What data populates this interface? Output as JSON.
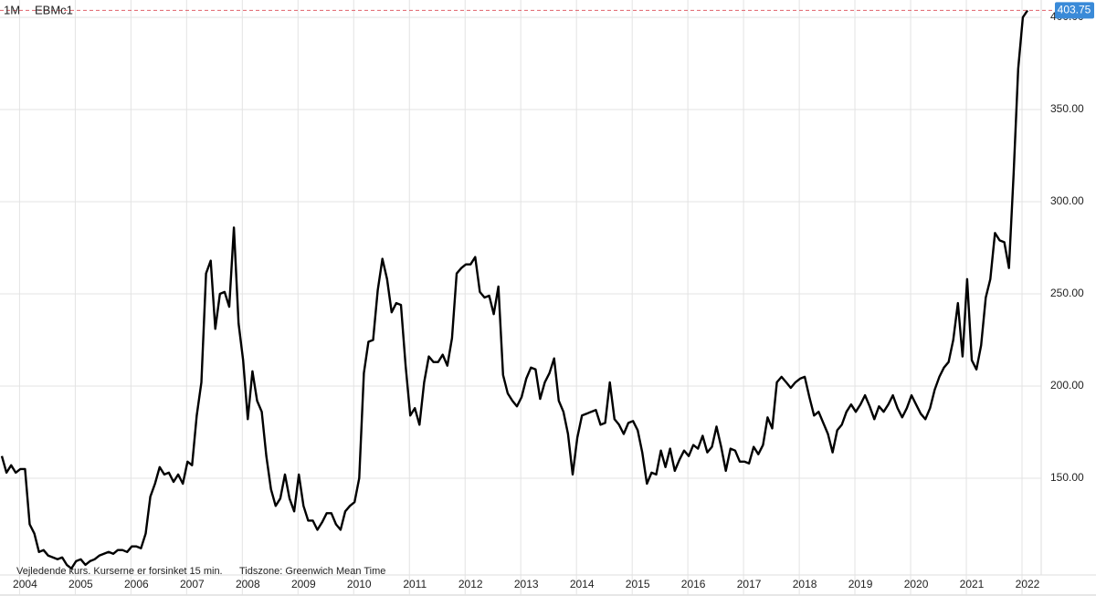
{
  "chart_data": {
    "type": "line",
    "interval": "1M",
    "footnote": "Vejledende kurs. Kurserne er forsinket 15 min.",
    "timezone_note": "Tidszone: Greenwich Mean Time",
    "categories": [
      null,
      null,
      null,
      null,
      null,
      "2004",
      null,
      null,
      null,
      null,
      null,
      null,
      null,
      null,
      null,
      null,
      null,
      "2005",
      null,
      null,
      null,
      null,
      null,
      null,
      null,
      null,
      null,
      null,
      null,
      "2006",
      null,
      null,
      null,
      null,
      null,
      null,
      null,
      null,
      null,
      null,
      null,
      "2007",
      null,
      null,
      null,
      null,
      null,
      null,
      null,
      null,
      null,
      null,
      null,
      "2008",
      null,
      null,
      null,
      null,
      null,
      null,
      null,
      null,
      null,
      null,
      null,
      "2009",
      null,
      null,
      null,
      null,
      null,
      null,
      null,
      null,
      null,
      null,
      null,
      "2010",
      null,
      null,
      null,
      null,
      null,
      null,
      null,
      null,
      null,
      null,
      null,
      "2011",
      null,
      null,
      null,
      null,
      null,
      null,
      null,
      null,
      null,
      null,
      null,
      "2012",
      null,
      null,
      null,
      null,
      null,
      null,
      null,
      null,
      null,
      null,
      null,
      "2013",
      null,
      null,
      null,
      null,
      null,
      null,
      null,
      null,
      null,
      null,
      null,
      "2014",
      null,
      null,
      null,
      null,
      null,
      null,
      null,
      null,
      null,
      null,
      null,
      "2015",
      null,
      null,
      null,
      null,
      null,
      null,
      null,
      null,
      null,
      null,
      null,
      "2016",
      null,
      null,
      null,
      null,
      null,
      null,
      null,
      null,
      null,
      null,
      null,
      "2017",
      null,
      null,
      null,
      null,
      null,
      null,
      null,
      null,
      null,
      null,
      null,
      "2018",
      null,
      null,
      null,
      null,
      null,
      null,
      null,
      null,
      null,
      null,
      null,
      "2019",
      null,
      null,
      null,
      null,
      null,
      null,
      null,
      null,
      null,
      null,
      null,
      "2020",
      null,
      null,
      null,
      null,
      null,
      null,
      null,
      null,
      null,
      null,
      null,
      "2021",
      null,
      null,
      null,
      null,
      null,
      null,
      null,
      null,
      null,
      null,
      null,
      "2022"
    ],
    "series": [
      {
        "name": "EBMc1",
        "color": "#000000",
        "values": [
          162,
          153,
          157,
          153,
          155,
          155,
          125,
          120,
          110,
          111,
          108,
          107,
          106,
          107,
          103,
          101,
          105,
          106,
          103,
          105,
          106,
          108,
          109,
          110,
          109,
          111,
          111,
          110,
          113,
          113,
          112,
          120,
          140,
          147,
          156,
          152,
          153,
          148,
          152,
          147,
          159,
          157,
          184,
          202,
          261,
          268,
          231,
          250,
          251,
          243,
          286,
          234,
          214,
          182,
          208,
          192,
          186,
          162,
          144,
          135,
          139,
          152,
          139,
          132,
          152,
          135,
          127,
          127,
          122,
          126,
          131,
          131,
          125,
          122,
          132,
          135,
          137,
          150,
          207,
          224,
          225,
          252,
          269,
          258,
          240,
          245,
          244,
          211,
          184,
          188,
          179,
          202,
          216,
          213,
          213,
          217,
          211,
          226,
          261,
          264,
          266,
          266,
          270,
          251,
          248,
          249,
          239,
          254,
          206,
          196,
          192,
          189,
          194,
          204,
          210,
          209,
          193,
          202,
          207,
          215,
          192,
          186,
          174,
          152,
          172,
          184,
          185,
          186,
          187,
          179,
          180,
          202,
          182,
          179,
          174,
          180,
          181,
          176,
          164,
          147,
          153,
          152,
          165,
          156,
          166,
          154,
          160,
          165,
          162,
          168,
          166,
          173,
          164,
          167,
          178,
          167,
          154,
          166,
          165,
          159,
          159,
          158,
          167,
          163,
          168,
          183,
          177,
          202,
          205,
          202,
          199,
          202,
          204,
          205,
          194,
          184,
          186,
          180,
          174,
          164,
          176,
          179,
          186,
          190,
          186,
          190,
          195,
          189,
          182,
          189,
          186,
          190,
          195,
          188,
          183,
          188,
          195,
          190,
          185,
          182,
          188,
          198,
          205,
          210,
          213,
          225,
          245,
          216,
          258,
          214,
          209,
          222,
          248,
          258,
          283,
          279,
          278,
          264,
          315,
          372,
          400,
          403.75
        ]
      }
    ],
    "ylim": [
      97.5,
      409.4
    ],
    "yticks": [
      {
        "value": 150,
        "label": "150.00"
      },
      {
        "value": 200,
        "label": "200.00"
      },
      {
        "value": 250,
        "label": "250.00"
      },
      {
        "value": 300,
        "label": "300.00"
      },
      {
        "value": 350,
        "label": "350.00"
      },
      {
        "value": 400,
        "label": "400.00"
      }
    ],
    "grid": true
  }
}
